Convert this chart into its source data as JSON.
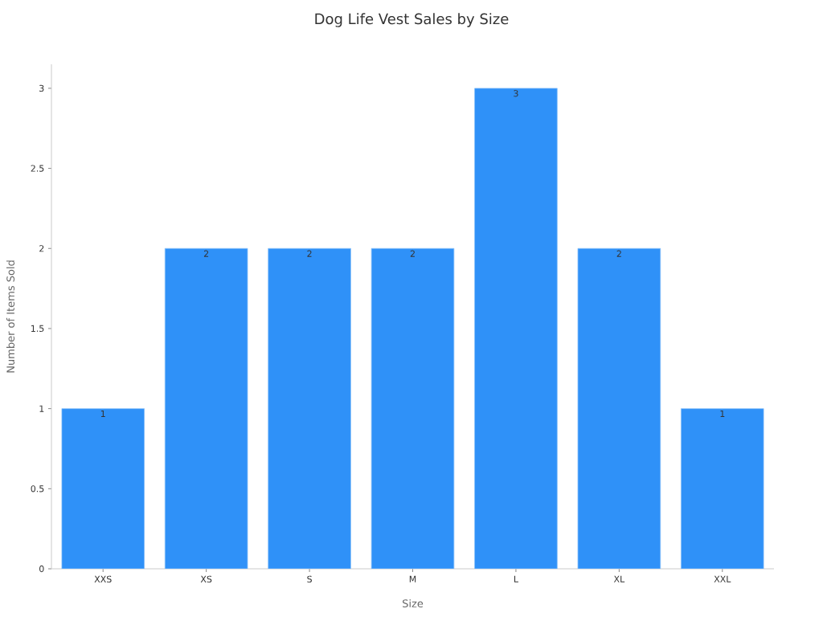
{
  "chart_data": {
    "type": "bar",
    "title": "Dog Life Vest Sales by Size",
    "xlabel": "Size",
    "ylabel": "Number of Items Sold",
    "categories": [
      "XXS",
      "XS",
      "S",
      "M",
      "L",
      "XL",
      "XXL"
    ],
    "values": [
      1,
      2,
      2,
      2,
      3,
      2,
      1
    ],
    "color": "#2f91f8",
    "ylim": [
      0,
      3.15
    ],
    "yticks": [
      0,
      0.5,
      1,
      1.5,
      2,
      2.5,
      3
    ],
    "data_labels": true
  }
}
